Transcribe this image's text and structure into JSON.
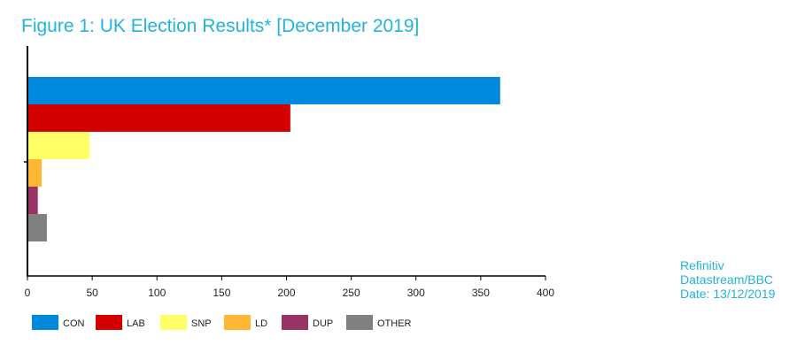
{
  "chart_data": {
    "type": "bar",
    "orientation": "horizontal",
    "title": "Figure 1: UK Election Results* [December 2019]",
    "xlabel": "",
    "ylabel": "",
    "xlim": [
      0,
      400
    ],
    "x_ticks": [
      0,
      50,
      100,
      150,
      200,
      250,
      300,
      350,
      400
    ],
    "grid": false,
    "legend_position": "bottom",
    "categories": [
      "CON",
      "LAB",
      "SNP",
      "LD",
      "DUP",
      "OTHER"
    ],
    "values": [
      365,
      203,
      48,
      11,
      8,
      15
    ],
    "colors": [
      "#0088dd",
      "#d40000",
      "#ffff66",
      "#ffb733",
      "#993366",
      "#808080"
    ]
  },
  "source": {
    "lines": [
      "Refinitiv",
      "Datastream/BBC",
      "Date: 13/12/2019"
    ]
  }
}
